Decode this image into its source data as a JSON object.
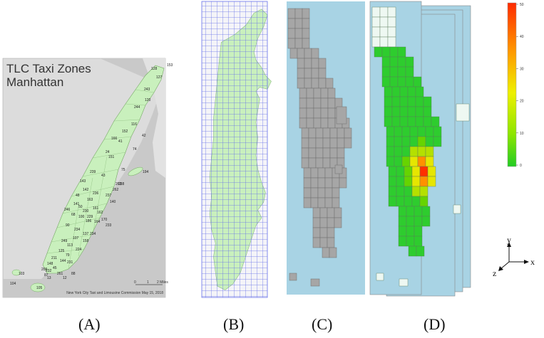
{
  "panel_a": {
    "title_line1": "TLC Taxi Zones",
    "title_line2": "Manhattan",
    "credit": "New York City Taxi and Limousine Commission May 15, 2018",
    "scale_labels": [
      "0",
      "1",
      "2 Miles"
    ],
    "zone_labels": [
      "128",
      "153",
      "127",
      "243",
      "120",
      "244",
      "116",
      "152",
      "42",
      "166",
      "41",
      "74",
      "24",
      "151",
      "75",
      "194",
      "238",
      "239",
      "143",
      "43",
      "236",
      "263",
      "262",
      "142",
      "237",
      "140",
      "48",
      "163",
      "141",
      "50",
      "230",
      "161",
      "162",
      "229",
      "246",
      "68",
      "100",
      "186",
      "164",
      "170",
      "233",
      "90",
      "234",
      "137",
      "234",
      "107",
      "158",
      "249",
      "113",
      "224",
      "125",
      "79",
      "211",
      "144",
      "148",
      "231",
      "45",
      "232",
      "261",
      "209",
      "87",
      "12",
      "13",
      "88",
      "105",
      "103",
      "104"
    ]
  },
  "panel_d": {
    "colorbar_ticks": [
      "50",
      "40",
      "30",
      "20",
      "10",
      "0"
    ],
    "colors": {
      "high": "#ff2a00",
      "mid": "#f5f500",
      "low": "#22cc22"
    }
  },
  "axes": {
    "x": "x",
    "y": "y",
    "z": "z"
  },
  "captions": [
    "(A)",
    "(B)",
    "(C)",
    "(D)"
  ]
}
